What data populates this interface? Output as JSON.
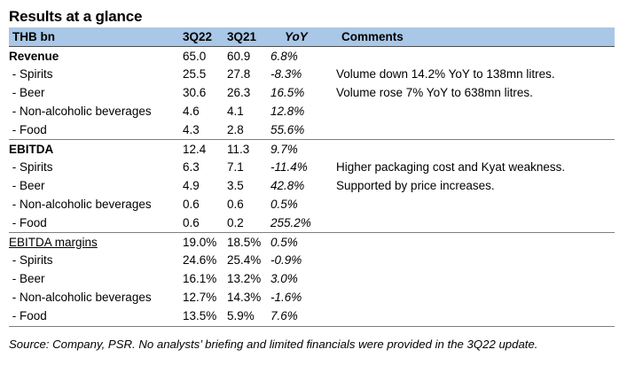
{
  "title": "Results at a glance",
  "header": {
    "label": "THB bn",
    "col1": "3Q22",
    "col2": "3Q21",
    "col3": "YoY",
    "col4": "Comments"
  },
  "rows": [
    {
      "label": "Revenue",
      "v1": "65.0",
      "v2": "60.9",
      "yoy": "6.8%",
      "comment": "",
      "style": "bold"
    },
    {
      "label": " - Spirits",
      "v1": "25.5",
      "v2": "27.8",
      "yoy": "-8.3%",
      "comment": "Volume down 14.2%  YoY to 138mn litres.",
      "style": ""
    },
    {
      "label": " - Beer",
      "v1": "30.6",
      "v2": "26.3",
      "yoy": "16.5%",
      "comment": "Volume rose 7% YoY to 638mn litres.",
      "style": ""
    },
    {
      "label": " - Non-alcoholic beverages",
      "v1": "4.6",
      "v2": "4.1",
      "yoy": "12.8%",
      "comment": "",
      "style": ""
    },
    {
      "label": " - Food",
      "v1": "4.3",
      "v2": "2.8",
      "yoy": "55.6%",
      "comment": "",
      "style": ""
    },
    {
      "label": "EBITDA",
      "v1": "12.4",
      "v2": "11.3",
      "yoy": "9.7%",
      "comment": "",
      "style": "bold"
    },
    {
      "label": " - Spirits",
      "v1": "6.3",
      "v2": "7.1",
      "yoy": "-11.4%",
      "comment": "Higher packaging cost and Kyat weakness.",
      "style": ""
    },
    {
      "label": " - Beer",
      "v1": "4.9",
      "v2": "3.5",
      "yoy": "42.8%",
      "comment": "Supported by price increases.",
      "style": ""
    },
    {
      "label": " - Non-alcoholic beverages",
      "v1": "0.6",
      "v2": "0.6",
      "yoy": "0.5%",
      "comment": "",
      "style": ""
    },
    {
      "label": " - Food",
      "v1": "0.6",
      "v2": "0.2",
      "yoy": "255.2%",
      "comment": "",
      "style": ""
    },
    {
      "label": "EBITDA margins",
      "v1": "19.0%",
      "v2": "18.5%",
      "yoy": "0.5%",
      "comment": "",
      "style": "underline"
    },
    {
      "label": " - Spirits",
      "v1": "24.6%",
      "v2": "25.4%",
      "yoy": "-0.9%",
      "comment": "",
      "style": ""
    },
    {
      "label": " - Beer",
      "v1": "16.1%",
      "v2": "13.2%",
      "yoy": "3.0%",
      "comment": "",
      "style": ""
    },
    {
      "label": " - Non-alcoholic beverages",
      "v1": "12.7%",
      "v2": "14.3%",
      "yoy": "-1.6%",
      "comment": "",
      "style": ""
    },
    {
      "label": " - Food",
      "v1": "13.5%",
      "v2": "5.9%",
      "yoy": "7.6%",
      "comment": "",
      "style": ""
    }
  ],
  "footer": "Source: Company, PSR. No analysts’ briefing and limited financials were provided in the 3Q22 update."
}
